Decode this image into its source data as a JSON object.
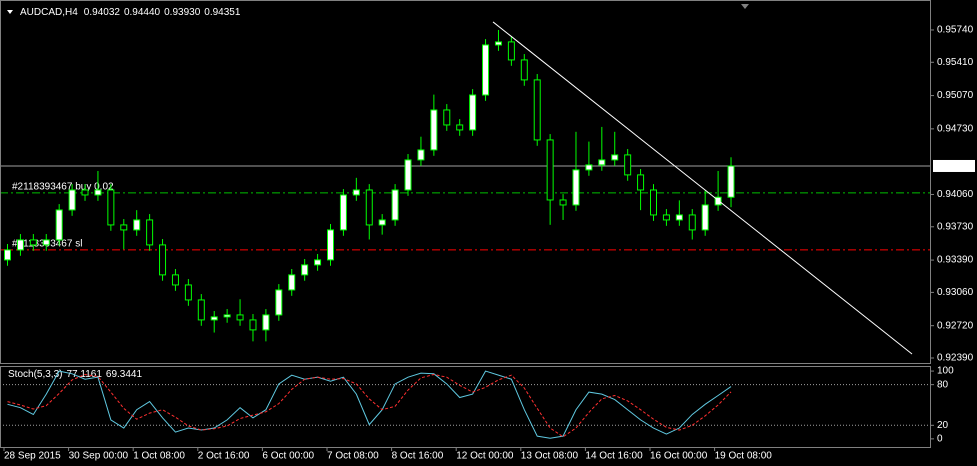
{
  "chart_data": [
    {
      "type": "candlestick",
      "title": "AUDCAD,H4",
      "ohlc_labels": [
        "0.94032",
        "0.94440",
        "0.93930",
        "0.94351"
      ],
      "categories": [
        "28 Sep 2015",
        null,
        null,
        null,
        null,
        "30 Sep 00:00",
        null,
        null,
        null,
        null,
        "1 Oct 08:00",
        null,
        null,
        null,
        null,
        "2 Oct 16:00",
        null,
        null,
        null,
        null,
        "6 Oct 00:00",
        null,
        null,
        null,
        null,
        "7 Oct 08:00",
        null,
        null,
        null,
        null,
        "8 Oct 16:00",
        null,
        null,
        null,
        null,
        "12 Oct 00:00",
        null,
        null,
        null,
        null,
        "13 Oct 08:00",
        null,
        null,
        null,
        null,
        "14 Oct 16:00",
        null,
        null,
        null,
        null,
        "16 Oct 00:00",
        null,
        null,
        null,
        null,
        "19 Oct 08:00",
        null
      ],
      "open": [
        0.93392,
        0.93494,
        0.93596,
        0.93545,
        0.93596,
        0.93902,
        0.94106,
        0.94055,
        0.94106,
        0.93749,
        0.93698,
        0.938,
        0.93545,
        0.93239,
        0.93136,
        0.92983,
        0.92779,
        0.9281,
        0.9283,
        0.92779,
        0.92677,
        0.9283,
        0.93085,
        0.93239,
        0.93341,
        0.93392,
        0.93698,
        0.94055,
        0.94106,
        0.93749,
        0.938,
        0.94106,
        0.94413,
        0.94515,
        0.94923,
        0.9477,
        0.94719,
        0.95076,
        0.95587,
        0.95618,
        0.95434,
        0.9523,
        0.94617,
        0.94004,
        0.93953,
        0.94311,
        0.94362,
        0.94413,
        0.94464,
        0.9426,
        0.94106,
        0.93851,
        0.938,
        0.93851,
        0.93698,
        0.93953,
        0.94032
      ],
      "high": [
        0.93554,
        0.93656,
        0.93656,
        0.93656,
        0.93962,
        0.94166,
        0.94166,
        0.943,
        0.94166,
        0.93809,
        0.939,
        0.9386,
        0.93605,
        0.93299,
        0.93196,
        0.93043,
        0.9287,
        0.9289,
        0.9299,
        0.92839,
        0.9289,
        0.93145,
        0.93299,
        0.93401,
        0.93452,
        0.93758,
        0.94115,
        0.9423,
        0.94166,
        0.9386,
        0.94166,
        0.94473,
        0.9465,
        0.9508,
        0.94983,
        0.9483,
        0.95136,
        0.95647,
        0.9574,
        0.95678,
        0.95494,
        0.9529,
        0.94677,
        0.94064,
        0.947,
        0.946,
        0.9475,
        0.947,
        0.94524,
        0.9432,
        0.94166,
        0.93911,
        0.94,
        0.93911,
        0.941,
        0.943,
        0.9444
      ],
      "low": [
        0.93332,
        0.93434,
        0.93485,
        0.93485,
        0.93536,
        0.93842,
        0.93995,
        0.93995,
        0.93689,
        0.935,
        0.93638,
        0.93485,
        0.93179,
        0.93076,
        0.92923,
        0.92719,
        0.9265,
        0.9275,
        0.92719,
        0.9256,
        0.9256,
        0.9277,
        0.93025,
        0.93179,
        0.93281,
        0.93332,
        0.93638,
        0.93995,
        0.936,
        0.9365,
        0.9374,
        0.94046,
        0.94353,
        0.94455,
        0.9471,
        0.94659,
        0.94659,
        0.95016,
        0.95527,
        0.95374,
        0.9517,
        0.94557,
        0.9375,
        0.938,
        0.93893,
        0.94251,
        0.94302,
        0.94353,
        0.942,
        0.939,
        0.93791,
        0.9374,
        0.9374,
        0.936,
        0.93638,
        0.93893,
        0.9393
      ],
      "close": [
        0.93494,
        0.93596,
        0.93545,
        0.93596,
        0.93902,
        0.94106,
        0.94055,
        0.94106,
        0.93749,
        0.93698,
        0.938,
        0.93545,
        0.93239,
        0.93136,
        0.92983,
        0.92779,
        0.9281,
        0.9283,
        0.92779,
        0.92677,
        0.9283,
        0.93085,
        0.93239,
        0.93341,
        0.93392,
        0.93698,
        0.94055,
        0.94106,
        0.93749,
        0.938,
        0.94106,
        0.94413,
        0.94515,
        0.94923,
        0.9477,
        0.94719,
        0.95076,
        0.95587,
        0.95618,
        0.95434,
        0.9523,
        0.94617,
        0.94004,
        0.93953,
        0.94311,
        0.94362,
        0.94413,
        0.94464,
        0.9426,
        0.94106,
        0.93851,
        0.938,
        0.93851,
        0.93698,
        0.93953,
        0.94032,
        0.94351
      ],
      "color": "#00ff00",
      "up_fill": "#ffffff",
      "down_fill": "#000000",
      "ylim": [
        0.92339,
        0.96046
      ],
      "yticks": [
        {
          "value": 0.9574,
          "label": "0.95740"
        },
        {
          "value": 0.9541,
          "label": "0.95410"
        },
        {
          "value": 0.9507,
          "label": "0.95070"
        },
        {
          "value": 0.9473,
          "label": "0.94730"
        },
        {
          "value": 0.9406,
          "label": "0.94060"
        },
        {
          "value": 0.9373,
          "label": "0.93730"
        },
        {
          "value": 0.9339,
          "label": "0.93390"
        },
        {
          "value": 0.9306,
          "label": "0.93060"
        },
        {
          "value": 0.9272,
          "label": "0.92720"
        },
        {
          "value": 0.9239,
          "label": "0.92390"
        }
      ],
      "lines": [
        {
          "label": "#2118393467 buy 0.02",
          "value": 0.94076,
          "color": "#00c000"
        },
        {
          "label": "#2118393467 sl",
          "value": 0.93494,
          "color": "#ff0000"
        }
      ],
      "trendline": {
        "x": [
          37.85,
          70.28
        ],
        "y": [
          0.95822,
          0.92431
        ]
      }
    },
    {
      "type": "line",
      "title": "Stoch(5,3,3)",
      "series": [
        {
          "color": "#5fc8e0",
          "values": [
            51,
            46,
            36,
            66,
            100,
            96,
            88,
            91,
            28,
            16,
            43,
            55,
            31,
            10,
            16,
            13,
            16,
            28,
            46,
            31,
            43,
            81,
            94,
            88,
            91,
            85,
            91,
            66,
            21,
            43,
            81,
            91,
            97,
            96,
            81,
            61,
            66,
            100,
            94,
            88,
            43,
            4,
            1,
            4,
            43,
            69,
            66,
            58,
            43,
            28,
            16,
            7,
            16,
            36,
            51,
            64,
            77.1161
          ]
        },
        {
          "color": "#ff3030",
          "dashed": true,
          "values": [
            55,
            50,
            44,
            49,
            67,
            87,
            95,
            92,
            69,
            45,
            29,
            38,
            43,
            32,
            19,
            13,
            15,
            19,
            30,
            35,
            40,
            52,
            73,
            88,
            91,
            88,
            89,
            81,
            59,
            43,
            48,
            72,
            90,
            95,
            91,
            79,
            69,
            76,
            87,
            94,
            75,
            45,
            16,
            3,
            16,
            39,
            59,
            64,
            56,
            43,
            29,
            17,
            13,
            20,
            34,
            50,
            69.3441
          ]
        }
      ],
      "ylim": [
        -12,
        107.5
      ],
      "yticks": [
        100,
        80,
        20,
        0
      ],
      "levels": [
        80,
        20
      ]
    }
  ]
}
